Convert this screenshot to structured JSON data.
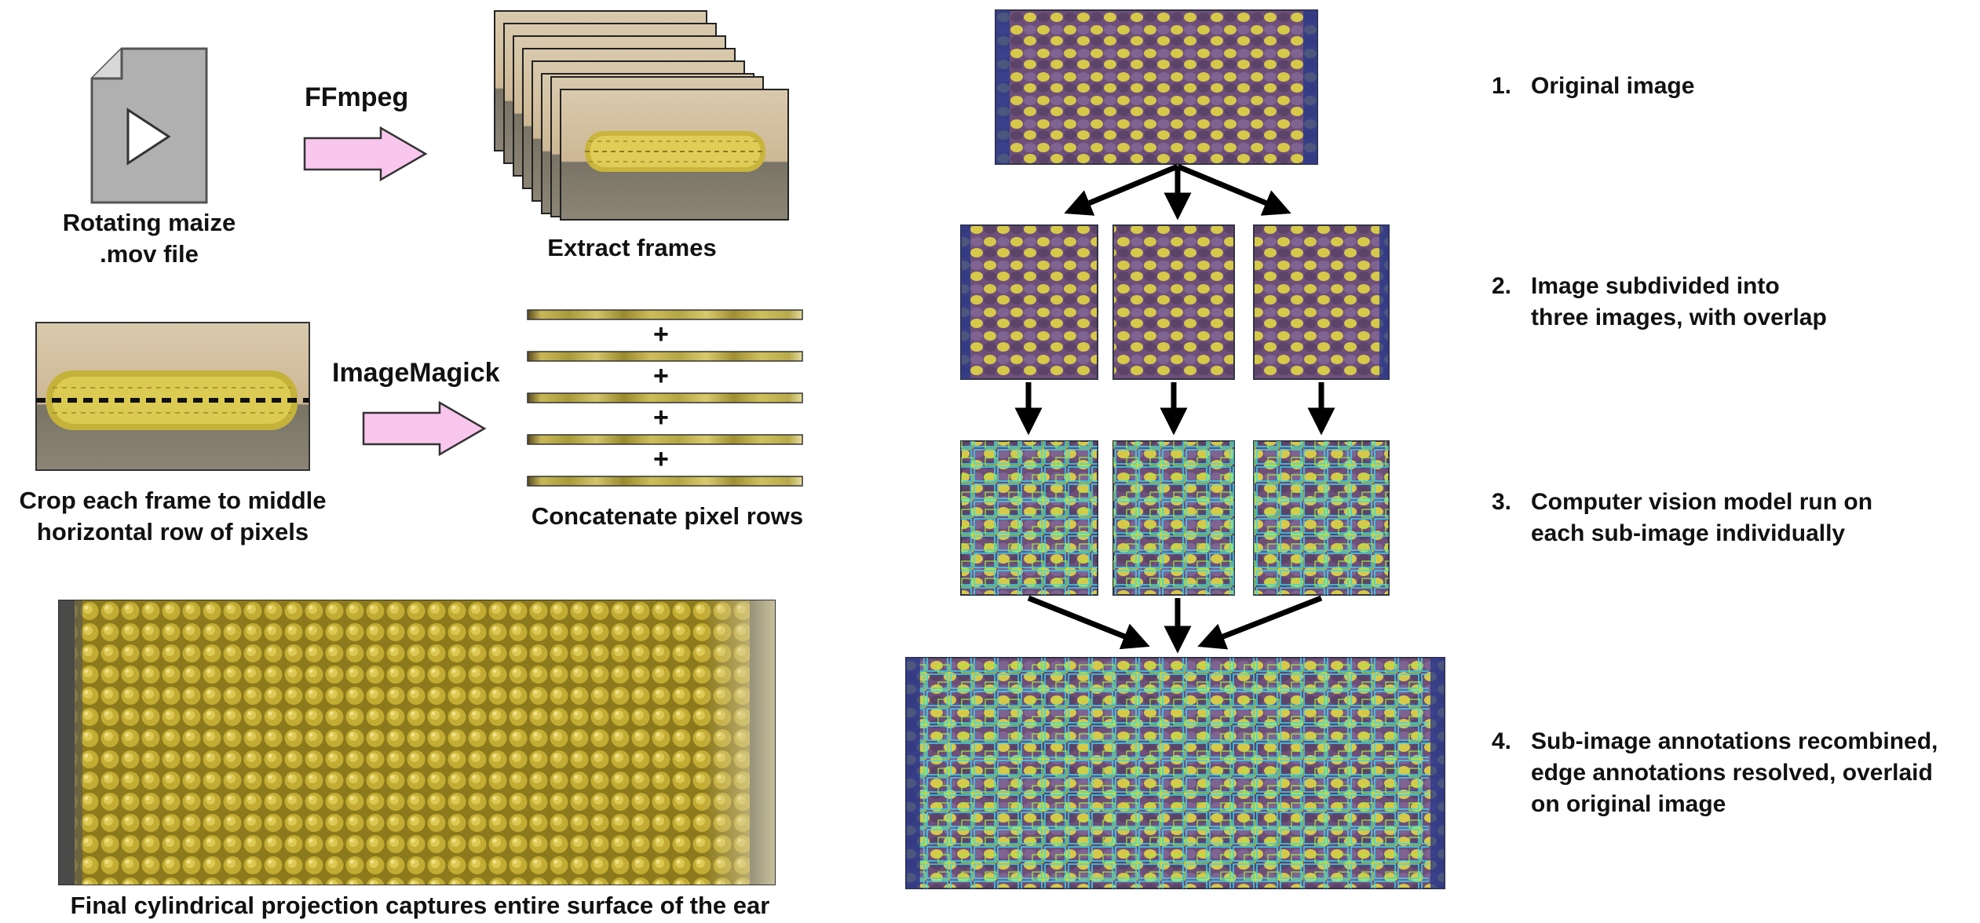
{
  "left": {
    "file_label": [
      "Rotating maize",
      ".mov file"
    ],
    "ffmpeg_label": "FFmpeg",
    "extract_label": "Extract frames",
    "imagemagick_label": "ImageMagick",
    "crop_label": [
      "Crop each frame to middle",
      "horizontal row of pixels"
    ],
    "concat_label": "Concatenate pixel rows",
    "plus_sign": "+",
    "final_label": "Final cylindrical projection captures entire surface of the ear"
  },
  "steps": [
    {
      "num": "1.",
      "lines": [
        "Original image"
      ]
    },
    {
      "num": "2.",
      "lines": [
        "Image subdivided into",
        "three images, with overlap"
      ]
    },
    {
      "num": "3.",
      "lines": [
        "Computer vision model run on",
        "each sub-image individually"
      ]
    },
    {
      "num": "4.",
      "lines": [
        "Sub-image annotations recombined,",
        "edge annotations resolved, overlaid",
        "on original image"
      ]
    }
  ],
  "colors": {
    "arrow_fill": "#f9c7ee",
    "kernel_yellow": "#d6c94a",
    "kernel_purple": "#6e4f7a",
    "box_cyan": "#35d7f0",
    "box_green": "#9ef03c"
  }
}
